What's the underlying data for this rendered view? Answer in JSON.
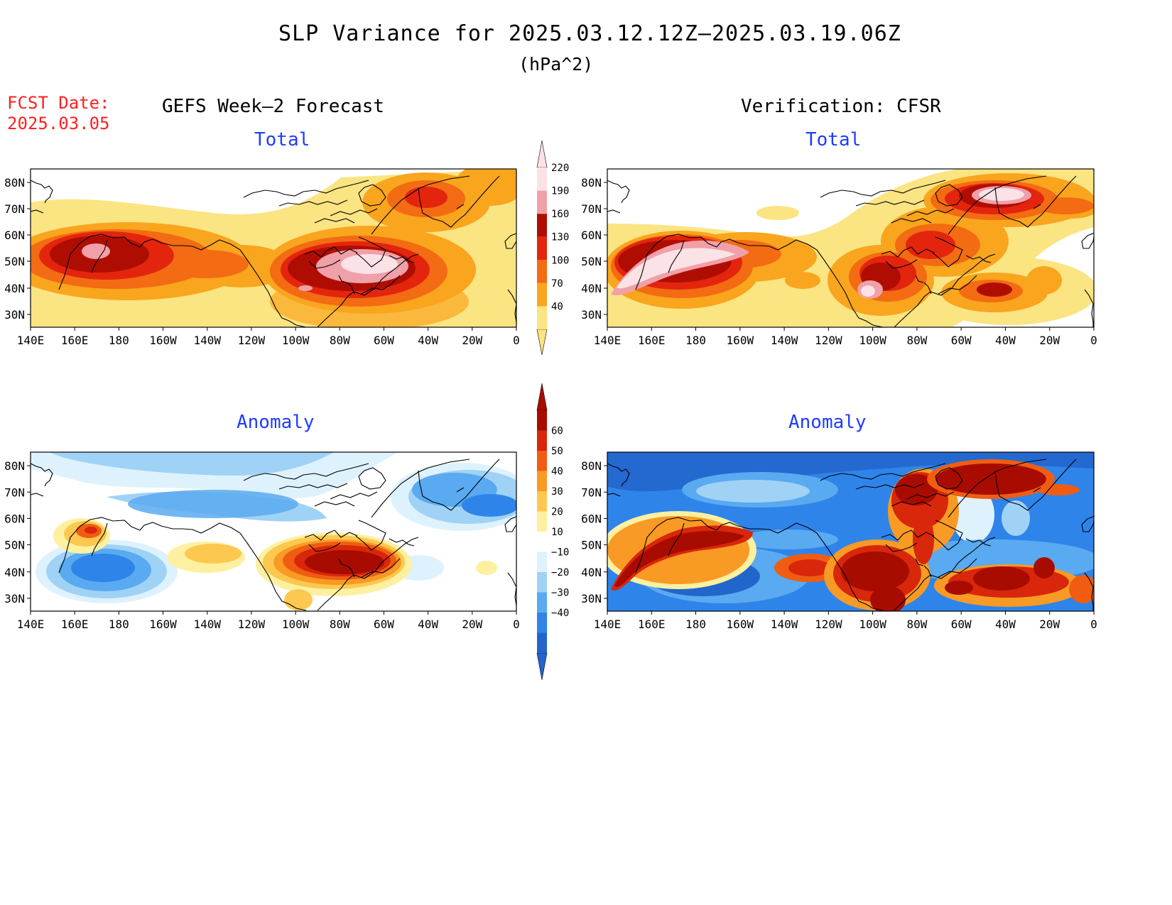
{
  "title": "SLP Variance for 2025.03.12.12Z–2025.03.19.06Z",
  "units": "(hPa^2)",
  "fcst_label": "FCST Date:",
  "fcst_date": "2025.03.05",
  "left_heading": "GEFS Week–2 Forecast",
  "right_heading": "Verification: CFSR",
  "panels": [
    {
      "id": "fcst-total",
      "label": "Total",
      "scale": "total"
    },
    {
      "id": "verif-total",
      "label": "Total",
      "scale": "total"
    },
    {
      "id": "fcst-anomaly",
      "label": "Anomaly",
      "scale": "anom"
    },
    {
      "id": "verif-anomaly",
      "label": "Anomaly",
      "scale": "anom"
    }
  ],
  "lat_labels": [
    "80N",
    "70N",
    "60N",
    "50N",
    "40N",
    "30N"
  ],
  "lon_labels": [
    "140E",
    "160E",
    "180",
    "160W",
    "140W",
    "120W",
    "100W",
    "80W",
    "60W",
    "40W",
    "20W",
    "0"
  ],
  "total_colorbar": {
    "labels": [
      "40",
      "70",
      "100",
      "130",
      "160",
      "190",
      "220"
    ],
    "colors": [
      "#fbe482",
      "#f9a51e",
      "#f36b12",
      "#e3250e",
      "#b00d02",
      "#f0a0a8",
      "#fbe2e6"
    ]
  },
  "anom_colorbar": {
    "labels": [
      "−40",
      "−30",
      "−20",
      "−10",
      "10",
      "20",
      "30",
      "40",
      "50",
      "60"
    ],
    "colors": [
      "#2266cc",
      "#2f84ea",
      "#59aaf0",
      "#a0d2f6",
      "#ddf2fc",
      "#ffffff",
      "#fdf0a0",
      "#fdc850",
      "#f99a24",
      "#f05d12",
      "#d8270a",
      "#a80c00"
    ]
  }
}
